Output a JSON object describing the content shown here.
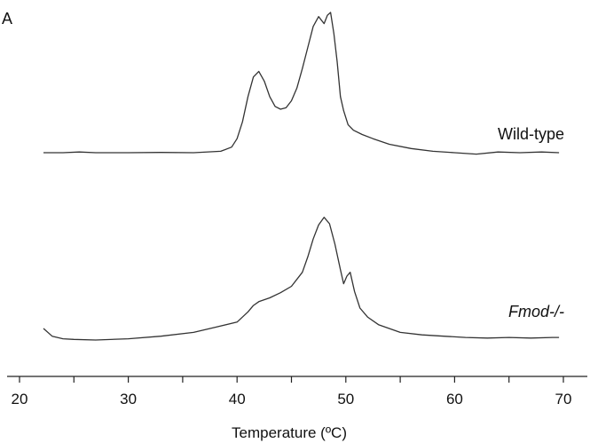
{
  "panel_label": "A",
  "chart_data": {
    "type": "line",
    "title": "",
    "xlabel": "Temperature (ºC)",
    "ylabel": "",
    "xlim": [
      20,
      72
    ],
    "xticks": [
      20,
      25,
      30,
      35,
      40,
      45,
      50,
      55,
      60,
      65,
      70
    ],
    "xtick_labels": [
      "20",
      "30",
      "40",
      "50",
      "60",
      "70"
    ],
    "xtick_label_values": [
      20,
      30,
      40,
      50,
      60,
      70
    ],
    "y_units": "relative",
    "grid": false,
    "line_color": "#333333",
    "series": [
      {
        "name": "Wild-type",
        "italic": false,
        "x": [
          22.2,
          24.0,
          25.5,
          27.0,
          30.0,
          33.0,
          36.0,
          38.5,
          39.5,
          40.0,
          40.5,
          41.0,
          41.5,
          42.0,
          42.5,
          43.0,
          43.5,
          44.0,
          44.5,
          45.0,
          45.5,
          46.0,
          46.5,
          47.0,
          47.5,
          48.0,
          48.3,
          48.6,
          48.9,
          49.2,
          49.5,
          49.8,
          50.2,
          50.7,
          51.5,
          52.5,
          54.0,
          56.0,
          58.0,
          60.0,
          62.0,
          64.0,
          66.0,
          68.0,
          69.6
        ],
        "y": [
          0.0,
          0.0,
          0.005,
          0.0,
          0.0,
          0.002,
          0.0,
          0.01,
          0.04,
          0.1,
          0.22,
          0.4,
          0.54,
          0.58,
          0.51,
          0.4,
          0.33,
          0.31,
          0.32,
          0.37,
          0.46,
          0.6,
          0.75,
          0.9,
          0.97,
          0.92,
          0.98,
          1.0,
          0.85,
          0.65,
          0.4,
          0.3,
          0.2,
          0.16,
          0.13,
          0.1,
          0.06,
          0.03,
          0.01,
          0.0,
          -0.01,
          0.005,
          0.0,
          0.005,
          0.0
        ]
      },
      {
        "name": "Fmod-/-",
        "italic": true,
        "x": [
          22.2,
          23.0,
          24.0,
          25.0,
          27.0,
          30.0,
          33.0,
          36.0,
          38.0,
          40.0,
          41.0,
          41.5,
          42.0,
          43.0,
          44.0,
          45.0,
          46.0,
          46.5,
          47.0,
          47.5,
          48.0,
          48.5,
          49.0,
          49.5,
          49.8,
          50.1,
          50.4,
          50.8,
          51.3,
          52.0,
          53.0,
          55.0,
          57.0,
          59.0,
          61.0,
          63.0,
          65.0,
          67.0,
          69.0,
          69.6
        ],
        "y": [
          0.09,
          0.03,
          0.01,
          0.005,
          0.0,
          0.01,
          0.03,
          0.06,
          0.1,
          0.14,
          0.22,
          0.27,
          0.3,
          0.33,
          0.37,
          0.42,
          0.53,
          0.65,
          0.79,
          0.9,
          0.96,
          0.91,
          0.75,
          0.55,
          0.44,
          0.5,
          0.53,
          0.38,
          0.25,
          0.18,
          0.12,
          0.06,
          0.04,
          0.03,
          0.02,
          0.015,
          0.02,
          0.015,
          0.02,
          0.02
        ]
      }
    ]
  }
}
